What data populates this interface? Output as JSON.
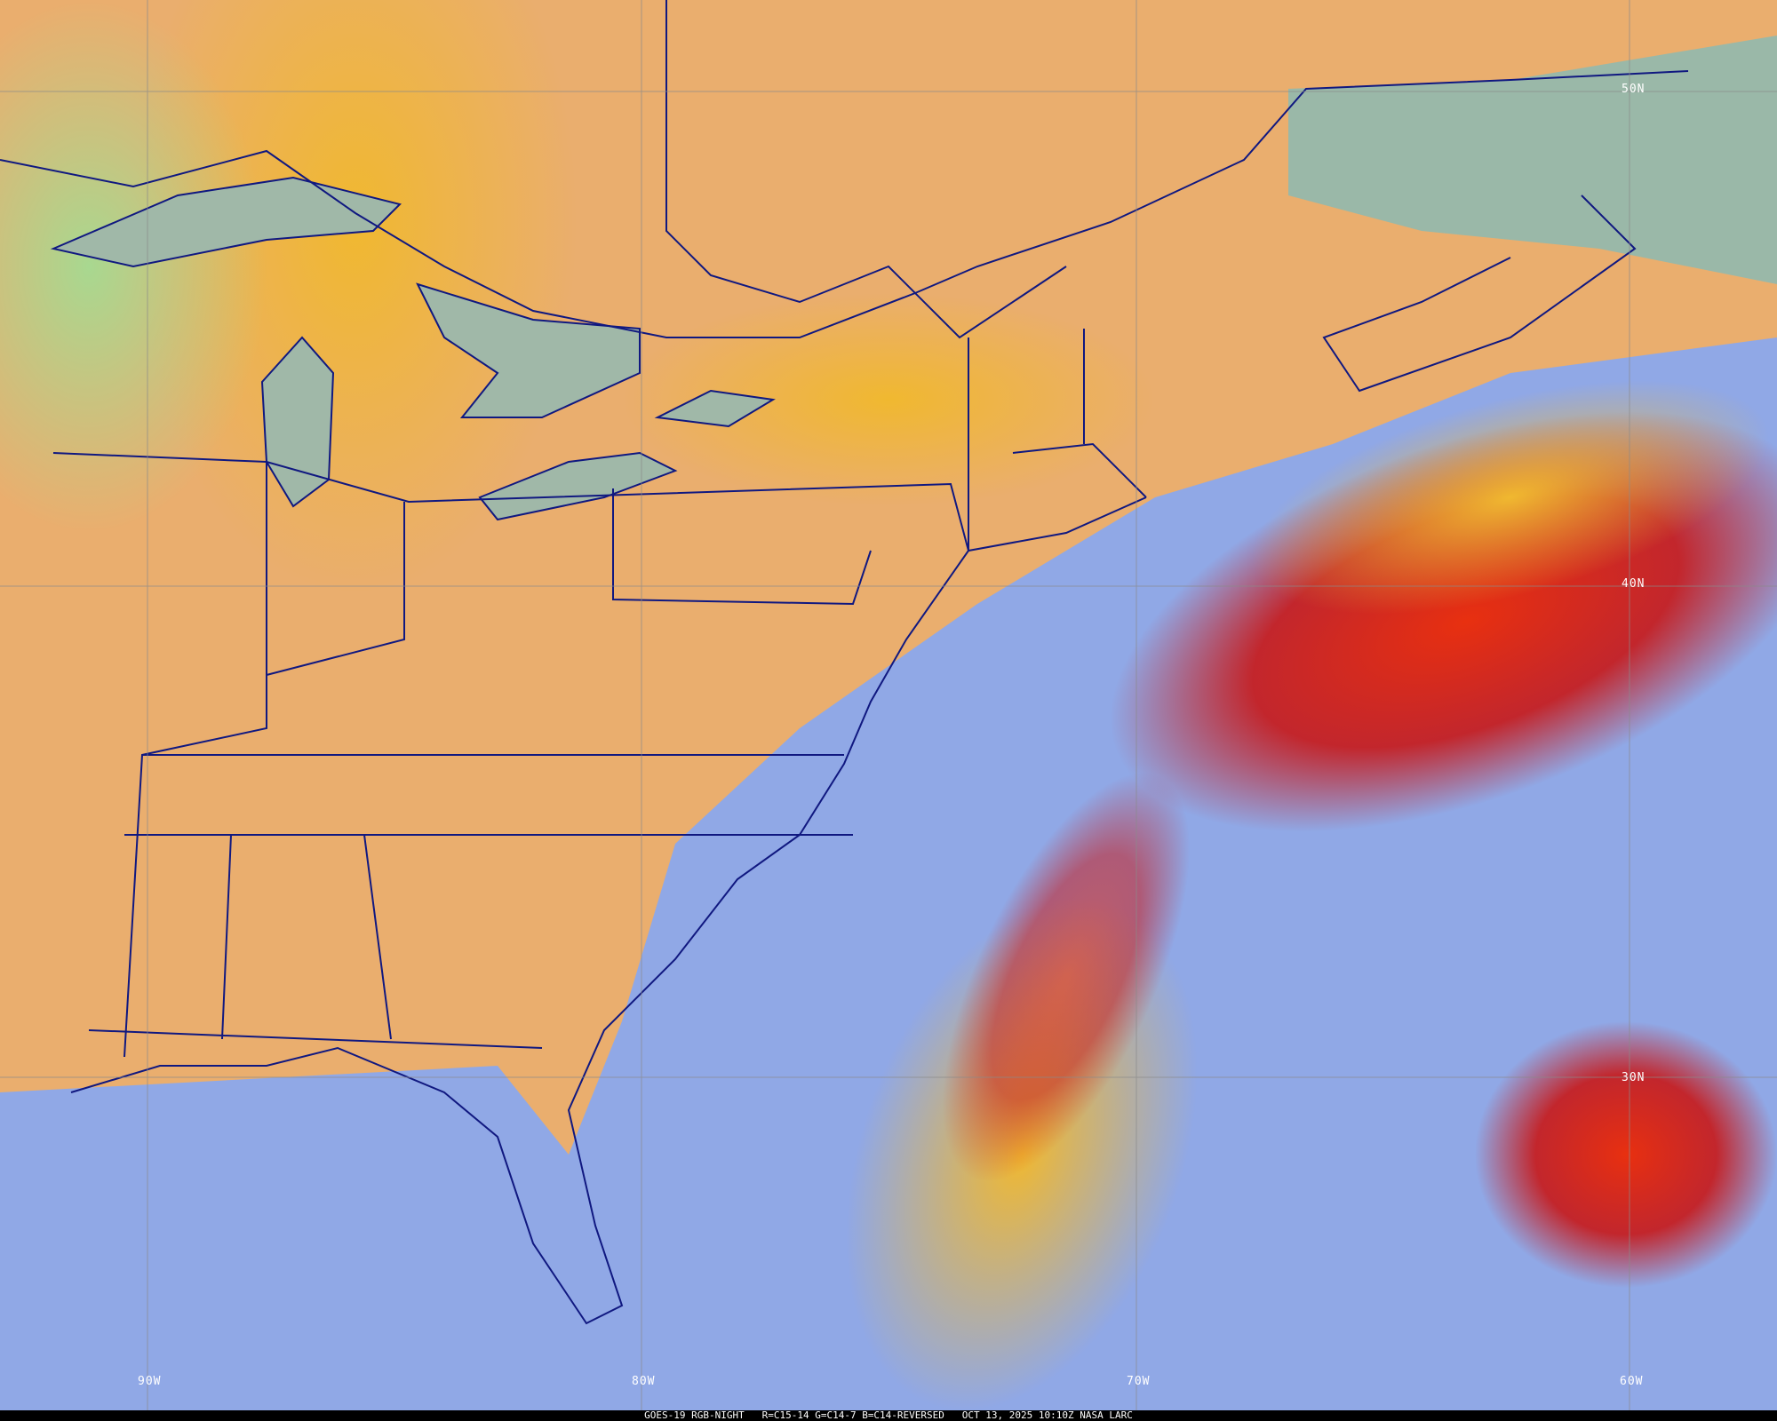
{
  "caption": "GOES-19 RGB-NIGHT   R=C15-14 G=C14-7 B=C14-REVERSED   OCT 13, 2025 10:10Z NASA LARC",
  "latitude_labels": [
    "50N",
    "40N",
    "30N"
  ],
  "longitude_labels": [
    "90W",
    "80W",
    "70W",
    "60W"
  ],
  "colors": {
    "land": "#e8b070",
    "ocean": "#8fa8e8",
    "storm_red": "#c8201a",
    "storm_yellow": "#f0c030",
    "borders": "#101880",
    "grid": "#8a8a8a"
  }
}
